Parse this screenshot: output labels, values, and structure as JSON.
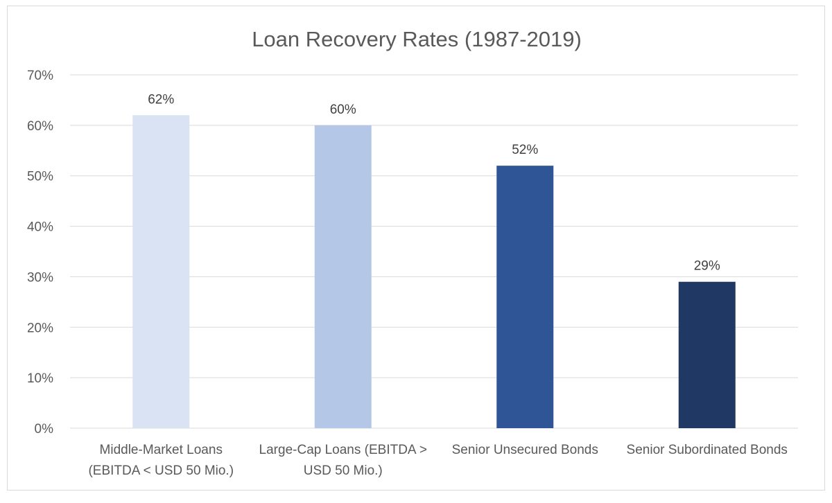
{
  "chart_data": {
    "type": "bar",
    "title": "Loan Recovery Rates (1987-2019)",
    "xlabel": "",
    "ylabel": "",
    "categories": [
      [
        "Middle-Market Loans",
        "(EBITDA < USD 50 Mio.)"
      ],
      [
        "Large-Cap Loans (EBITDA >",
        "USD 50 Mio.)"
      ],
      [
        "Senior Unsecured Bonds"
      ],
      [
        "Senior Subordinated Bonds"
      ]
    ],
    "values": [
      62,
      60,
      52,
      29
    ],
    "data_labels": [
      "62%",
      "60%",
      "52%",
      "29%"
    ],
    "bar_colors": [
      "#dae3f3",
      "#b4c7e7",
      "#2f5597",
      "#203864"
    ],
    "ylim": [
      0,
      70
    ],
    "yticks": [
      0,
      10,
      20,
      30,
      40,
      50,
      60,
      70
    ],
    "ytick_labels": [
      "0%",
      "10%",
      "20%",
      "30%",
      "40%",
      "50%",
      "60%",
      "70%"
    ],
    "grid": true,
    "legend": "none"
  }
}
